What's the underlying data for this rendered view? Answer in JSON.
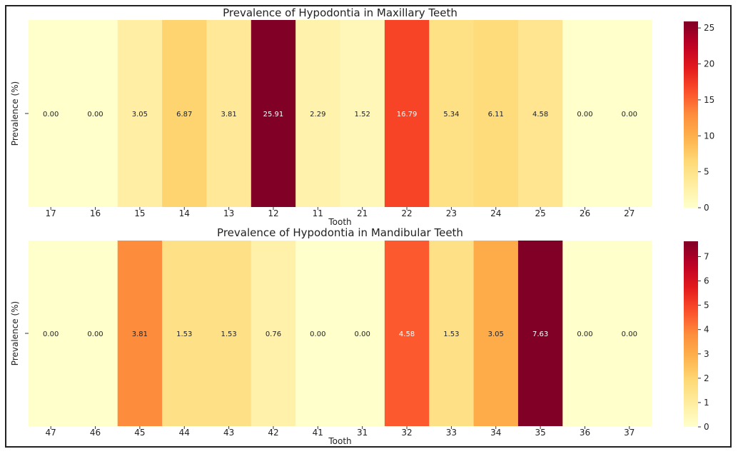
{
  "chart_data": [
    {
      "type": "heatmap",
      "title": "Prevalence of Hypodontia in Maxillary Teeth",
      "xlabel": "Tooth",
      "ylabel": "Prevalence (%)",
      "categories": [
        "17",
        "16",
        "15",
        "14",
        "13",
        "12",
        "11",
        "21",
        "22",
        "23",
        "24",
        "25",
        "26",
        "27"
      ],
      "values": [
        0.0,
        0.0,
        3.05,
        6.87,
        3.81,
        25.91,
        2.29,
        1.52,
        16.79,
        5.34,
        6.11,
        4.58,
        0.0,
        0.0
      ],
      "value_labels": [
        "0.00",
        "0.00",
        "3.05",
        "6.87",
        "3.81",
        "25.91",
        "2.29",
        "1.52",
        "16.79",
        "5.34",
        "6.11",
        "4.58",
        "0.00",
        "0.00"
      ],
      "colorbar": {
        "min": 0,
        "max": 25.91,
        "ticks": [
          0,
          5,
          10,
          15,
          20,
          25
        ],
        "tick_labels": [
          "0",
          "5",
          "10",
          "15",
          "20",
          "25"
        ]
      },
      "colormap": "YlOrRd"
    },
    {
      "type": "heatmap",
      "title": "Prevalence of Hypodontia in Mandibular Teeth",
      "xlabel": "Tooth",
      "ylabel": "Prevalence (%)",
      "categories": [
        "47",
        "46",
        "45",
        "44",
        "43",
        "42",
        "41",
        "31",
        "32",
        "33",
        "34",
        "35",
        "36",
        "37"
      ],
      "values": [
        0.0,
        0.0,
        3.81,
        1.53,
        1.53,
        0.76,
        0.0,
        0.0,
        4.58,
        1.53,
        3.05,
        7.63,
        0.0,
        0.0
      ],
      "value_labels": [
        "0.00",
        "0.00",
        "3.81",
        "1.53",
        "1.53",
        "0.76",
        "0.00",
        "0.00",
        "4.58",
        "1.53",
        "3.05",
        "7.63",
        "0.00",
        "0.00"
      ],
      "colorbar": {
        "min": 0,
        "max": 7.63,
        "ticks": [
          0,
          1,
          2,
          3,
          4,
          5,
          6,
          7
        ],
        "tick_labels": [
          "0",
          "1",
          "2",
          "3",
          "4",
          "5",
          "6",
          "7"
        ]
      },
      "colormap": "YlOrRd"
    }
  ]
}
